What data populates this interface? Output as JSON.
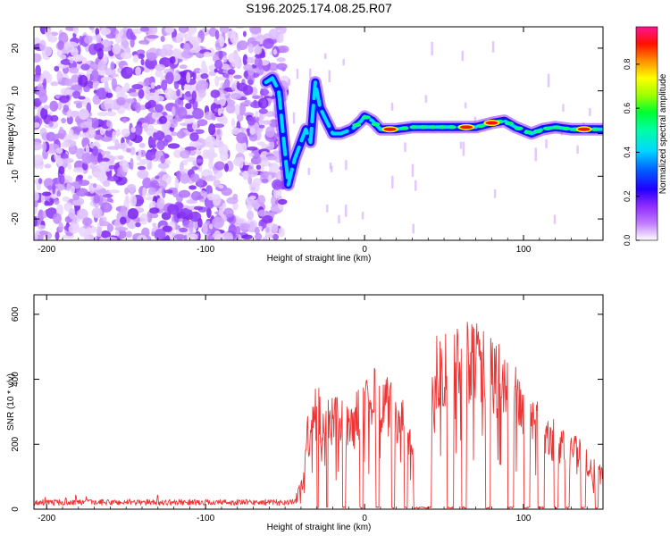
{
  "title": "S196.2025.174.08.25.R07",
  "chart_data": [
    {
      "type": "heatmap",
      "xlabel": "Height of straight line (km)",
      "ylabel": "Frequency (Hz)",
      "xlim": [
        -208,
        150
      ],
      "ylim": [
        -25,
        25
      ],
      "x_ticks": [
        -200,
        -100,
        0,
        100
      ],
      "y_ticks": [
        -20,
        -10,
        0,
        10,
        20
      ],
      "colorbar": {
        "label": "Normalized spectral amplitude",
        "range": [
          0,
          0.97
        ],
        "ticks": [
          0.0,
          0.2,
          0.4,
          0.6,
          0.8
        ],
        "colormap": [
          "#ffffff",
          "#8f2cff",
          "#0000ff",
          "#00d8ff",
          "#00ff40",
          "#ffff00",
          "#ff8000",
          "#ff0000",
          "#ff1493"
        ]
      },
      "noise_region": {
        "x_range": [
          -208,
          -50
        ],
        "freq_range": [
          -25,
          25
        ],
        "amplitude_max": 0.15
      },
      "ridge": [
        {
          "x": -62,
          "f": 12
        },
        {
          "x": -58,
          "f": 13
        },
        {
          "x": -54,
          "f": 10
        },
        {
          "x": -48,
          "f": -12
        },
        {
          "x": -44,
          "f": -6
        },
        {
          "x": -40,
          "f": -2
        },
        {
          "x": -37,
          "f": 1
        },
        {
          "x": -34,
          "f": -2
        },
        {
          "x": -31,
          "f": 12
        },
        {
          "x": -28,
          "f": 6
        },
        {
          "x": -24,
          "f": 3
        },
        {
          "x": -20,
          "f": 0
        },
        {
          "x": -15,
          "f": 0
        },
        {
          "x": -8,
          "f": 1
        },
        {
          "x": -2,
          "f": 3
        },
        {
          "x": 0,
          "f": 4
        },
        {
          "x": 5,
          "f": 3
        },
        {
          "x": 10,
          "f": 1
        },
        {
          "x": 20,
          "f": 1
        },
        {
          "x": 30,
          "f": 1.5
        },
        {
          "x": 40,
          "f": 1.5
        },
        {
          "x": 50,
          "f": 1.5
        },
        {
          "x": 60,
          "f": 1.5
        },
        {
          "x": 70,
          "f": 1.5
        },
        {
          "x": 80,
          "f": 2.5
        },
        {
          "x": 88,
          "f": 3
        },
        {
          "x": 95,
          "f": 1.5
        },
        {
          "x": 105,
          "f": 0
        },
        {
          "x": 112,
          "f": 1
        },
        {
          "x": 120,
          "f": 1.5
        },
        {
          "x": 130,
          "f": 1
        },
        {
          "x": 140,
          "f": 1
        },
        {
          "x": 150,
          "f": 1
        }
      ],
      "ridge_peaks": [
        {
          "x": 16,
          "f": 1,
          "amplitude": 0.95
        },
        {
          "x": 64,
          "f": 1.5,
          "amplitude": 0.9
        },
        {
          "x": 80,
          "f": 2.5,
          "amplitude": 0.9
        },
        {
          "x": 138,
          "f": 1,
          "amplitude": 0.95
        }
      ]
    },
    {
      "type": "line",
      "xlabel": "Height of straight line (km)",
      "ylabel": "SNR (10 * v/v)",
      "xlim": [
        -208,
        150
      ],
      "ylim": [
        0,
        660
      ],
      "x_ticks": [
        -200,
        -100,
        0,
        100
      ],
      "y_ticks": [
        0,
        200,
        400,
        600
      ],
      "series": [
        {
          "color": "#ee3333",
          "anchors": [
            {
              "x": -208,
              "y": 20
            },
            {
              "x": -45,
              "y": 20
            },
            {
              "x": -38,
              "y": 120
            },
            {
              "x": -35,
              "y": 350
            },
            {
              "x": -30,
              "y": 380
            },
            {
              "x": -25,
              "y": 300
            },
            {
              "x": -20,
              "y": 350
            },
            {
              "x": -10,
              "y": 300
            },
            {
              "x": 0,
              "y": 400
            },
            {
              "x": 10,
              "y": 430
            },
            {
              "x": 18,
              "y": 360
            },
            {
              "x": 25,
              "y": 320
            },
            {
              "x": 30,
              "y": 200
            },
            {
              "x": 35,
              "y": 150
            },
            {
              "x": 40,
              "y": 220
            },
            {
              "x": 45,
              "y": 540
            },
            {
              "x": 55,
              "y": 550
            },
            {
              "x": 60,
              "y": 580
            },
            {
              "x": 70,
              "y": 600
            },
            {
              "x": 75,
              "y": 560
            },
            {
              "x": 85,
              "y": 480
            },
            {
              "x": 95,
              "y": 420
            },
            {
              "x": 105,
              "y": 340
            },
            {
              "x": 115,
              "y": 280
            },
            {
              "x": 125,
              "y": 240
            },
            {
              "x": 135,
              "y": 220
            },
            {
              "x": 142,
              "y": 160
            },
            {
              "x": 150,
              "y": 120
            }
          ],
          "dropouts": [
            {
              "x": -30,
              "width": 1
            },
            {
              "x": -24,
              "width": 1
            },
            {
              "x": -14,
              "width": 2
            },
            {
              "x": -3,
              "width": 2
            },
            {
              "x": 7,
              "width": 2
            },
            {
              "x": 17,
              "width": 2
            },
            {
              "x": 25,
              "width": 2
            },
            {
              "x": 31,
              "width": 11
            },
            {
              "x": 52,
              "width": 4
            },
            {
              "x": 61,
              "width": 3
            },
            {
              "x": 76,
              "width": 3
            },
            {
              "x": 90,
              "width": 4
            },
            {
              "x": 100,
              "width": 4
            },
            {
              "x": 109,
              "width": 4
            },
            {
              "x": 119,
              "width": 3
            },
            {
              "x": 126,
              "width": 3
            },
            {
              "x": 136,
              "width": 3
            },
            {
              "x": 145,
              "width": 2
            }
          ]
        }
      ]
    }
  ]
}
